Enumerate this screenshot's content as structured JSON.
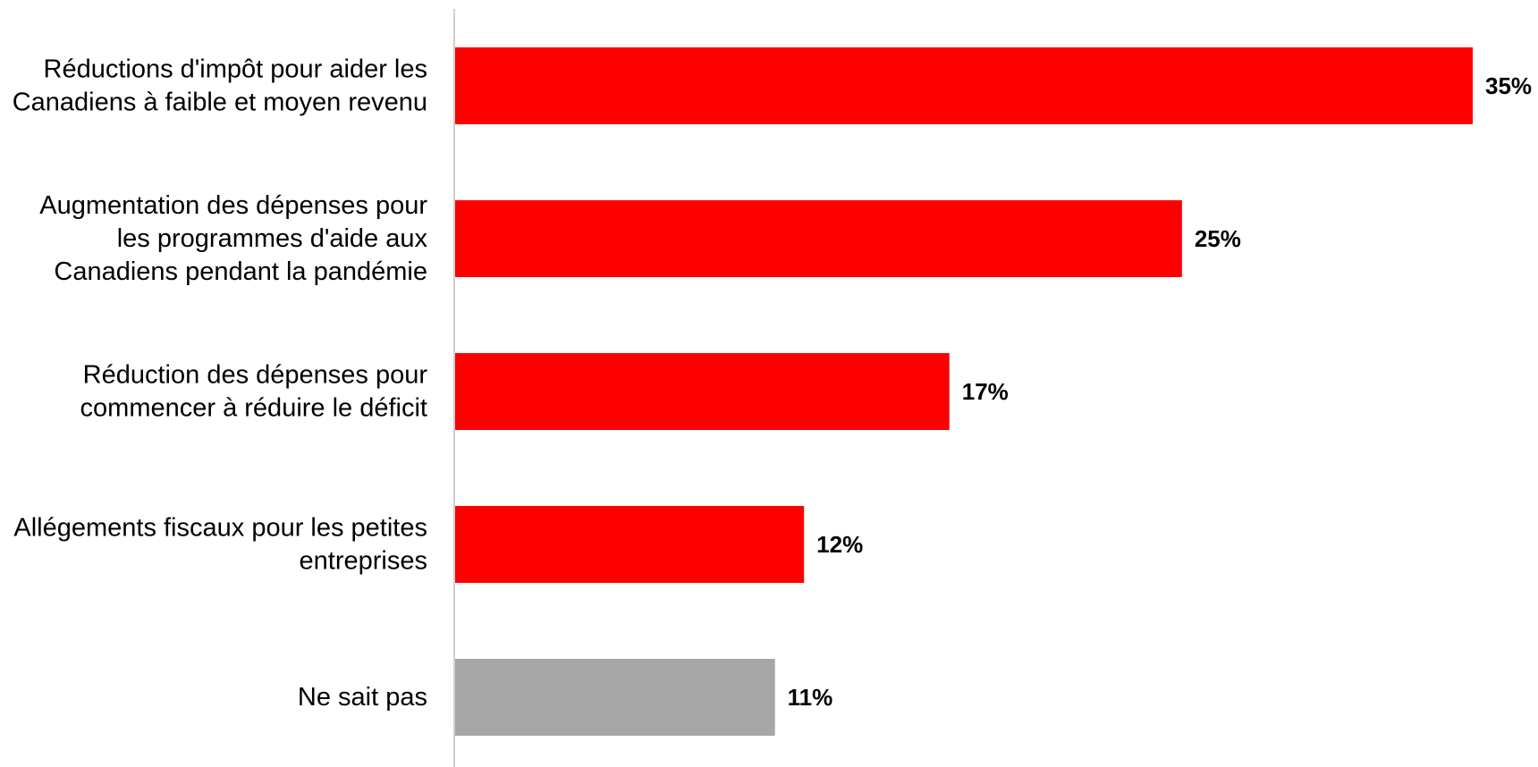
{
  "chart_data": {
    "type": "bar",
    "orientation": "horizontal",
    "categories": [
      [
        "Réductions d'impôt pour aider les",
        "Canadiens à faible et moyen revenu"
      ],
      [
        "Augmentation des dépenses pour",
        "les programmes d'aide aux",
        "Canadiens pendant la pandémie"
      ],
      [
        "Réduction des dépenses pour",
        "commencer à réduire le déficit"
      ],
      [
        "Allégements fiscaux pour les petites",
        "entreprises"
      ],
      [
        "Ne sait pas"
      ]
    ],
    "values": [
      35,
      25,
      17,
      12,
      11
    ],
    "value_labels": [
      "35%",
      "25%",
      "17%",
      "12%",
      "11%"
    ],
    "bar_colors": [
      "#ff0000",
      "#ff0000",
      "#ff0000",
      "#ff0000",
      "#a6a6a6"
    ],
    "axis_line_color": "#bfbfbf",
    "xlim": [
      0,
      35
    ],
    "grid": false,
    "legend": "none"
  }
}
